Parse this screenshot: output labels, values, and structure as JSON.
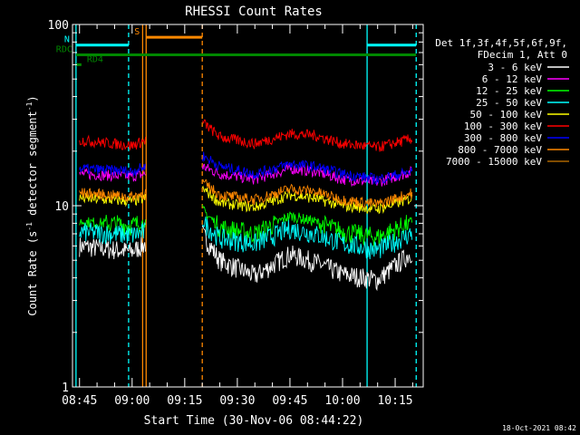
{
  "chart_data": {
    "type": "line",
    "title": "RHESSI Count Rates",
    "xlabel": "Start Time (30-Nov-06 08:44:22)",
    "ylabel": "Count Rate (s^-1 detector segment^-1)",
    "ylabel_main": "Count Rate (s",
    "ylabel_sup1": "-1",
    "ylabel_mid": " detector segment",
    "ylabel_sup2": "-1",
    "ylabel_end": ")",
    "yscale": "log",
    "ylim": [
      1,
      100
    ],
    "xlim": [
      "08:43",
      "10:23"
    ],
    "x_ticks": [
      "08:45",
      "09:00",
      "09:15",
      "09:30",
      "09:45",
      "10:00",
      "10:15"
    ],
    "y_ticks": [
      "1",
      "10",
      "100"
    ],
    "legend_header": [
      "Det 1f,3f,4f,5f,6f,9f,",
      "FDecim 1, Att 0"
    ],
    "legend_placement": "right",
    "footer_timestamp": "18-Oct-2021 08:42",
    "gap": [
      "09:04",
      "09:20"
    ],
    "series": [
      {
        "name": "3 - 6 keV",
        "color": "#ffffff",
        "points": [
          [
            "08:45",
            6.0
          ],
          [
            "09:00",
            5.6
          ],
          [
            "09:04",
            6.2
          ],
          [
            "09:20",
            7.0
          ],
          [
            "09:25",
            5.0
          ],
          [
            "09:35",
            4.1
          ],
          [
            "09:45",
            5.4
          ],
          [
            "09:52",
            4.9
          ],
          [
            "10:00",
            4.2
          ],
          [
            "10:10",
            3.9
          ],
          [
            "10:20",
            5.6
          ]
        ]
      },
      {
        "name": "6 - 12 keV",
        "color": "#ff00ff",
        "points": [
          [
            "08:45",
            15.0
          ],
          [
            "09:00",
            14.5
          ],
          [
            "09:04",
            15.0
          ],
          [
            "09:20",
            16.5
          ],
          [
            "09:25",
            15.0
          ],
          [
            "09:35",
            14.0
          ],
          [
            "09:45",
            16.0
          ],
          [
            "09:52",
            15.5
          ],
          [
            "10:00",
            14.0
          ],
          [
            "10:10",
            13.5
          ],
          [
            "10:20",
            15.5
          ]
        ]
      },
      {
        "name": "12 - 25 keV",
        "color": "#00ff00",
        "points": [
          [
            "08:45",
            8.2
          ],
          [
            "09:00",
            7.8
          ],
          [
            "09:04",
            8.2
          ],
          [
            "09:20",
            9.5
          ],
          [
            "09:25",
            7.6
          ],
          [
            "09:35",
            7.0
          ],
          [
            "09:45",
            8.8
          ],
          [
            "09:52",
            8.2
          ],
          [
            "10:00",
            7.2
          ],
          [
            "10:10",
            6.7
          ],
          [
            "10:20",
            8.2
          ]
        ]
      },
      {
        "name": "25 - 50 keV",
        "color": "#00ffff",
        "points": [
          [
            "08:45",
            7.2
          ],
          [
            "09:00",
            6.9
          ],
          [
            "09:04",
            7.2
          ],
          [
            "09:20",
            8.2
          ],
          [
            "09:25",
            6.6
          ],
          [
            "09:35",
            6.2
          ],
          [
            "09:45",
            7.5
          ],
          [
            "09:52",
            7.0
          ],
          [
            "10:00",
            6.2
          ],
          [
            "10:10",
            5.7
          ],
          [
            "10:20",
            7.1
          ]
        ]
      },
      {
        "name": "50 - 100 keV",
        "color": "#ffff00",
        "points": [
          [
            "08:45",
            11.0
          ],
          [
            "09:00",
            10.6
          ],
          [
            "09:04",
            11.0
          ],
          [
            "09:20",
            12.5
          ],
          [
            "09:25",
            10.4
          ],
          [
            "09:35",
            9.8
          ],
          [
            "09:45",
            11.5
          ],
          [
            "09:52",
            11.0
          ],
          [
            "10:00",
            10.0
          ],
          [
            "10:10",
            9.6
          ],
          [
            "10:20",
            11.0
          ]
        ]
      },
      {
        "name": "100 - 300 keV",
        "color": "#ff0000",
        "points": [
          [
            "08:45",
            23.0
          ],
          [
            "09:00",
            21.5
          ],
          [
            "09:04",
            23.0
          ],
          [
            "09:20",
            29.0
          ],
          [
            "09:25",
            24.0
          ],
          [
            "09:35",
            22.0
          ],
          [
            "09:45",
            25.0
          ],
          [
            "09:52",
            24.5
          ],
          [
            "10:00",
            22.0
          ],
          [
            "10:10",
            21.0
          ],
          [
            "10:20",
            23.5
          ]
        ]
      },
      {
        "name": "300 - 800 keV",
        "color": "#0000ff",
        "points": [
          [
            "08:45",
            16.0
          ],
          [
            "09:00",
            15.5
          ],
          [
            "09:04",
            16.5
          ],
          [
            "09:20",
            19.0
          ],
          [
            "09:25",
            16.5
          ],
          [
            "09:35",
            15.0
          ],
          [
            "09:45",
            17.0
          ],
          [
            "09:52",
            16.5
          ],
          [
            "10:00",
            15.0
          ],
          [
            "10:10",
            14.0
          ],
          [
            "10:20",
            15.5
          ]
        ]
      },
      {
        "name": "800 - 7000 keV",
        "color": "#ff8800",
        "points": [
          [
            "08:45",
            11.8
          ],
          [
            "09:00",
            11.2
          ],
          [
            "09:04",
            11.8
          ],
          [
            "09:20",
            13.5
          ],
          [
            "09:25",
            11.5
          ],
          [
            "09:35",
            10.8
          ],
          [
            "09:45",
            12.4
          ],
          [
            "09:52",
            12.0
          ],
          [
            "10:00",
            10.8
          ],
          [
            "10:10",
            10.2
          ],
          [
            "10:20",
            11.8
          ]
        ]
      },
      {
        "name": "7000 - 15000 keV",
        "color": "#aa6600",
        "points": []
      }
    ],
    "vertical_lines": [
      {
        "x": "08:44",
        "color": "#00ffff",
        "style": "solid"
      },
      {
        "x": "08:59",
        "color": "#00ffff",
        "style": "dashed"
      },
      {
        "x": "09:03",
        "color": "#ff8800",
        "style": "solid"
      },
      {
        "x": "09:04",
        "color": "#ff8800",
        "style": "solid"
      },
      {
        "x": "09:20",
        "color": "#ff8800",
        "style": "dashed"
      },
      {
        "x": "10:07",
        "color": "#00ffff",
        "style": "solid"
      },
      {
        "x": "10:21",
        "color": "#00ffff",
        "style": "dashed"
      }
    ],
    "flag_bars": [
      {
        "label": "S",
        "color": "#ff8800",
        "from": "09:04",
        "to": "09:20",
        "level": 85
      },
      {
        "label": "N",
        "color": "#00ffff",
        "from": "08:44",
        "to": "08:59",
        "level": 77
      },
      {
        "label": "",
        "color": "#00ffff",
        "from": "10:07",
        "to": "10:21",
        "level": 77
      },
      {
        "label": "RDC",
        "color": "#008800",
        "from": "08:44",
        "to": "10:21",
        "level": 68
      },
      {
        "label": "RD4",
        "color": "#008800",
        "from": "08:44",
        "to": "08:44",
        "level": 60
      }
    ]
  }
}
